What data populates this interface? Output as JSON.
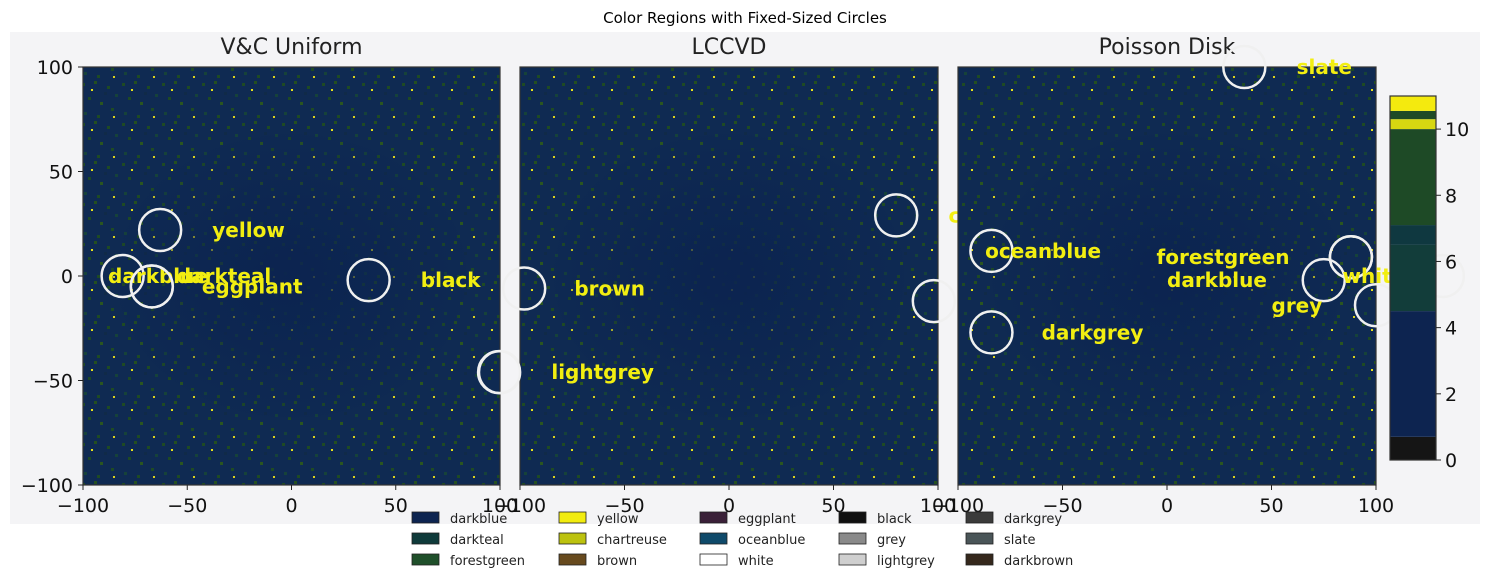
{
  "title": "Color Regions with Fixed-Sized Circles",
  "chart_data": [
    {
      "type": "heatmap",
      "title": "V&C Uniform",
      "xlim": [
        -100,
        100
      ],
      "ylim": [
        -100,
        100
      ],
      "x_ticks": [
        "−100",
        "−50",
        "0",
        "50",
        "100"
      ],
      "y_ticks": [
        "100",
        "50",
        "0",
        "−50",
        "−100"
      ],
      "circles": [
        {
          "x": -63,
          "y": 22,
          "label": "yellow",
          "lx": -38,
          "ly": 22
        },
        {
          "x": -81,
          "y": 0,
          "label": "darkblue",
          "lx": -88,
          "ly": 0
        },
        {
          "x": -67,
          "y": -5,
          "label": "darkteal",
          "lx": -55,
          "ly": 0
        },
        {
          "x": -67,
          "y": -5,
          "label": "eggplant",
          "lx": -43,
          "ly": -5
        },
        {
          "x": 37,
          "y": -2,
          "label": "black",
          "lx": 62,
          "ly": -2
        },
        {
          "x": 100,
          "y": -46,
          "label": "",
          "lx": 0,
          "ly": 0
        }
      ]
    },
    {
      "type": "heatmap",
      "title": "LCCVD",
      "xlim": [
        -100,
        100
      ],
      "ylim": [
        -100,
        100
      ],
      "x_ticks": [
        "−100",
        "−50",
        "0",
        "50",
        "100"
      ],
      "y_ticks": [],
      "circles": [
        {
          "x": -98,
          "y": -6,
          "label": "brown",
          "lx": -74,
          "ly": -6
        },
        {
          "x": 80,
          "y": 29,
          "label": "chartreuse",
          "lx": 105,
          "ly": 29
        },
        {
          "x": 98,
          "y": -12,
          "label": "",
          "lx": 0,
          "ly": 0
        },
        {
          "x": -110,
          "y": -46,
          "label": "lightgrey",
          "lx": -85,
          "ly": -46
        }
      ]
    },
    {
      "type": "heatmap",
      "title": "Poisson Disk",
      "xlim": [
        -100,
        100
      ],
      "ylim": [
        -100,
        100
      ],
      "x_ticks": [
        "−100",
        "−50",
        "0",
        "50",
        "100"
      ],
      "y_ticks": [],
      "circles": [
        {
          "x": 37,
          "y": 100,
          "label": "slate",
          "lx": 62,
          "ly": 100
        },
        {
          "x": 88,
          "y": 9,
          "label": "forestgreen",
          "lx": -5,
          "ly": 9
        },
        {
          "x": 75,
          "y": -2,
          "label": "darkblue",
          "lx": 0,
          "ly": -2
        },
        {
          "x": 88,
          "y": 9,
          "label": "white",
          "lx": 84,
          "ly": 0
        },
        {
          "x": 100,
          "y": -14,
          "label": "grey",
          "lx": 50,
          "ly": -14
        },
        {
          "x": -84,
          "y": 12,
          "label": "oceanblue",
          "lx": -87,
          "ly": 12
        },
        {
          "x": -84,
          "y": -27,
          "label": "darkgrey",
          "lx": -60,
          "ly": -27
        },
        {
          "x": 132,
          "y": 0,
          "label": "",
          "lx": 0,
          "ly": 0
        }
      ]
    }
  ],
  "colorbar": {
    "ticks": [
      "0",
      "2",
      "4",
      "6",
      "8",
      "10"
    ],
    "range": [
      0,
      11
    ],
    "segments": [
      {
        "from": 0,
        "to": 0.7,
        "color": "#151515"
      },
      {
        "from": 0.7,
        "to": 4.5,
        "color": "#0d2450"
      },
      {
        "from": 4.5,
        "to": 6.5,
        "color": "#123d3a"
      },
      {
        "from": 6.5,
        "to": 7.1,
        "color": "#0f3840"
      },
      {
        "from": 7.1,
        "to": 10.0,
        "color": "#1e4a26"
      },
      {
        "from": 10.0,
        "to": 10.3,
        "color": "#d7d711"
      },
      {
        "from": 10.3,
        "to": 10.55,
        "color": "#1e4a26"
      },
      {
        "from": 10.55,
        "to": 11,
        "color": "#f4ea0e"
      }
    ]
  },
  "legend": [
    {
      "label": "darkblue",
      "color": "#0d2450"
    },
    {
      "label": "darkteal",
      "color": "#0f3a3a"
    },
    {
      "label": "forestgreen",
      "color": "#1f4f2a"
    },
    {
      "label": "yellow",
      "color": "#f2ec0f"
    },
    {
      "label": "chartreuse",
      "color": "#bcc20f"
    },
    {
      "label": "brown",
      "color": "#674a1e"
    },
    {
      "label": "eggplant",
      "color": "#3a2038"
    },
    {
      "label": "oceanblue",
      "color": "#0f4a6a"
    },
    {
      "label": "white",
      "color": "#ffffff"
    },
    {
      "label": "black",
      "color": "#101010"
    },
    {
      "label": "grey",
      "color": "#8a8a8a"
    },
    {
      "label": "lightgrey",
      "color": "#cfcfcf"
    },
    {
      "label": "darkgrey",
      "color": "#3a3a3a"
    },
    {
      "label": "slate",
      "color": "#4a5558"
    },
    {
      "label": "darkbrown",
      "color": "#35281c"
    }
  ]
}
